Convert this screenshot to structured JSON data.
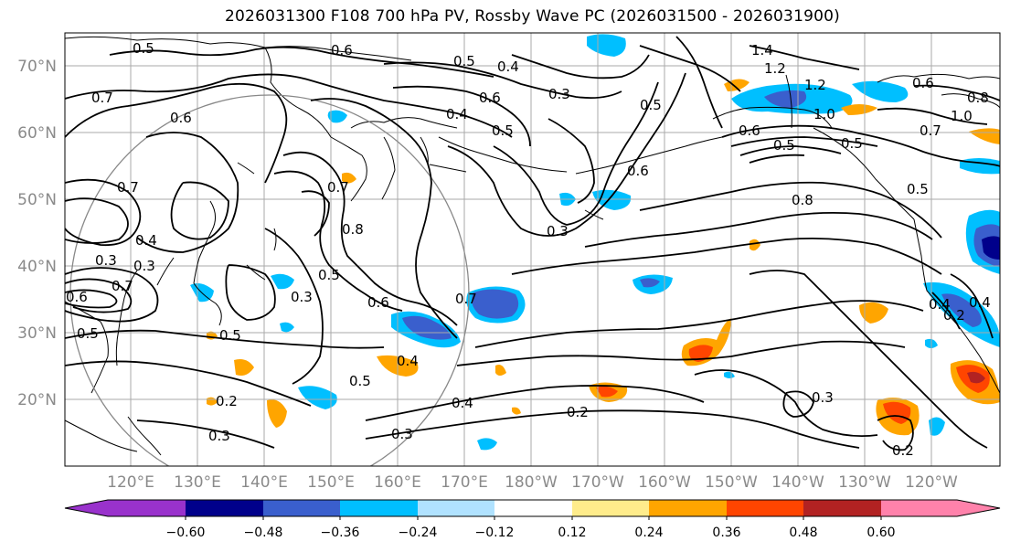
{
  "title": "2026031300 F108 700 hPa PV, Rossby Wave PC (2026031500 - 2026031900)",
  "lat_labels": [
    "70°N",
    "60°N",
    "50°N",
    "40°N",
    "30°N",
    "20°N"
  ],
  "lon_labels": [
    "120°E",
    "130°E",
    "140°E",
    "150°E",
    "160°E",
    "170°E",
    "180°W",
    "170°W",
    "160°W",
    "150°W",
    "140°W",
    "130°W",
    "120°W"
  ],
  "colorbar": {
    "colors": [
      "#9932cc",
      "#00008b",
      "#3a5fcd",
      "#00bfff",
      "#b0e2ff",
      "#ffffff",
      "#ffec8b",
      "#ffa500",
      "#ff4500",
      "#b22222",
      "#ff82ab"
    ],
    "ticks": [
      "−0.60",
      "−0.48",
      "−0.36",
      "−0.24",
      "−0.12",
      "0.12",
      "0.24",
      "0.36",
      "0.48",
      "0.60"
    ]
  },
  "contour_labels": [
    "0.5",
    "0.6",
    "0.7",
    "0.6",
    "0.5",
    "0.4",
    "0.6",
    "0.3",
    "0.5",
    "0.4",
    "0.5",
    "1.4",
    "1.2",
    "1.2",
    "0.6",
    "0.8",
    "1.0",
    "1.0",
    "0.6",
    "0.5",
    "0.5",
    "0.7",
    "0.5",
    "0.8",
    "0.6",
    "0.3",
    "0.7",
    "0.8",
    "0.7",
    "0.3",
    "0.4",
    "0.6",
    "0.7",
    "0.5",
    "0.3",
    "0.5",
    "0.6",
    "0.7",
    "0.5",
    "0.4",
    "0.3",
    "0.4",
    "0.5",
    "0.2",
    "0.2",
    "0.3",
    "0.3",
    "0.4",
    "0.2",
    "0.3",
    "0.2",
    "0.4"
  ]
}
